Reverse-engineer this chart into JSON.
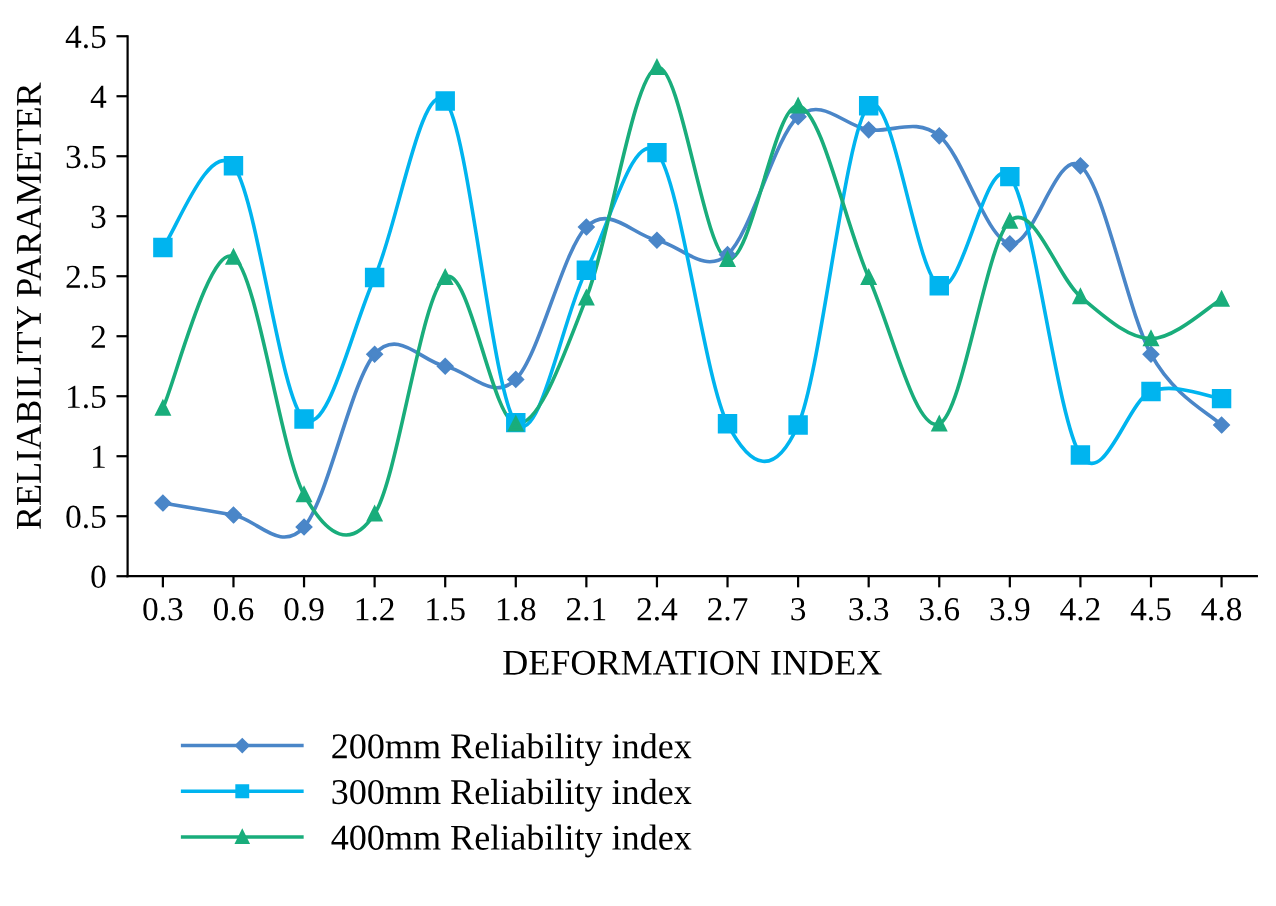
{
  "chart_data": {
    "type": "line",
    "xlabel": "DEFORMATION INDEX",
    "ylabel": "RELIABILITY PARAMETER",
    "categories": [
      "0.3",
      "0.6",
      "0.9",
      "1.2",
      "1.5",
      "1.8",
      "2.1",
      "2.4",
      "2.7",
      "3",
      "3.3",
      "3.6",
      "3.9",
      "4.2",
      "4.5",
      "4.8"
    ],
    "series": [
      {
        "name": "200mm Reliability index",
        "color": "#4a86c8",
        "marker": "diamond",
        "values": [
          0.61,
          0.51,
          0.41,
          1.85,
          1.75,
          1.64,
          2.91,
          2.8,
          2.68,
          3.83,
          3.72,
          3.67,
          2.77,
          3.42,
          1.85,
          1.26
        ]
      },
      {
        "name": "300mm Reliability index",
        "color": "#00b4ef",
        "marker": "square",
        "values": [
          2.74,
          3.42,
          1.31,
          2.49,
          3.96,
          1.28,
          2.55,
          3.53,
          1.27,
          1.26,
          3.92,
          2.42,
          3.33,
          1.01,
          1.54,
          1.48
        ]
      },
      {
        "name": "400mm Reliability index",
        "color": "#19ad7b",
        "marker": "triangle",
        "values": [
          1.4,
          2.66,
          0.68,
          0.52,
          2.49,
          1.27,
          2.32,
          4.24,
          2.64,
          3.92,
          2.49,
          1.27,
          2.96,
          2.33,
          1.98,
          2.31
        ]
      }
    ],
    "ylim": [
      0,
      4.5
    ],
    "yticks": [
      0,
      0.5,
      1,
      1.5,
      2,
      2.5,
      3,
      3.5,
      4,
      4.5
    ],
    "grid": false,
    "legend": "bottom",
    "line_style": "solid"
  }
}
